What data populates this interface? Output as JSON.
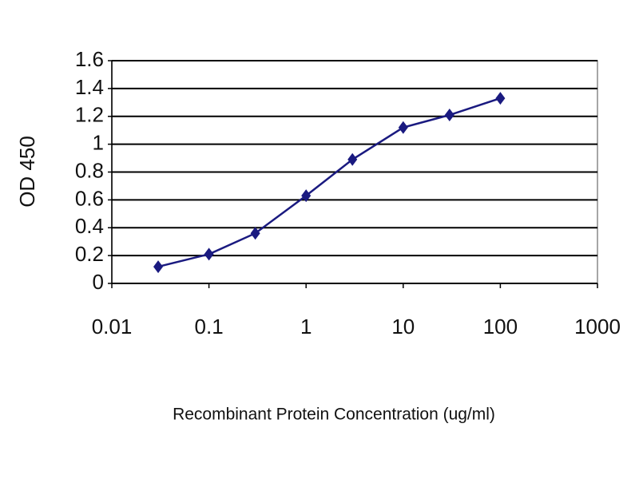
{
  "chart_data": {
    "type": "line",
    "x_label": "Recombinant Protein Concentration (ug/ml)",
    "y_label": "OD 450",
    "x": [
      0.03,
      0.1,
      0.3,
      1,
      3,
      10,
      30,
      100
    ],
    "series": [
      {
        "color": "#1a1a80",
        "values": [
          0.12,
          0.21,
          0.36,
          0.63,
          0.89,
          1.12,
          1.21,
          1.33
        ]
      }
    ],
    "xscale": "log",
    "xlim": [
      0.01,
      1000
    ],
    "xticks": [
      0.01,
      0.1,
      1,
      10,
      100,
      1000
    ],
    "ylim": [
      0,
      1.6
    ],
    "yticks": [
      0,
      0.2,
      0.4,
      0.6,
      0.8,
      1,
      1.2,
      1.4,
      1.6
    ],
    "grid": true
  }
}
